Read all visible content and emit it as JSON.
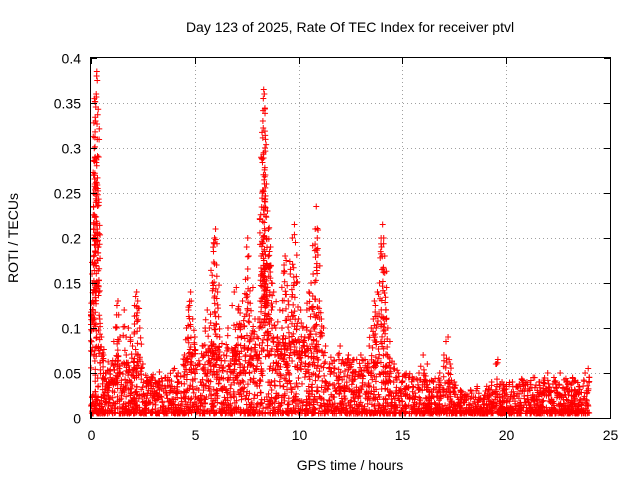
{
  "chart_data": {
    "type": "scatter",
    "title": "Day 123 of 2025, Rate Of TEC Index for receiver ptvl",
    "xlabel": "GPS time / hours",
    "ylabel": "ROTI / TECUs",
    "xlim": [
      0,
      25
    ],
    "ylim": [
      0,
      0.4
    ],
    "xticks": [
      0,
      5,
      10,
      15,
      20,
      25
    ],
    "xtick_labels": [
      "0",
      "5",
      "10",
      "15",
      "20",
      "25"
    ],
    "yticks": [
      0,
      0.05,
      0.1,
      0.15,
      0.2,
      0.25,
      0.3,
      0.35,
      0.4
    ],
    "ytick_labels": [
      "0",
      "0.05",
      "0.1",
      "0.15",
      "0.2",
      "0.25",
      "0.3",
      "0.35",
      "0.4"
    ],
    "grid": true,
    "marker": "+",
    "color": "#ff0000",
    "series": [
      {
        "name": "ROTI",
        "points": [
          [
            0.05,
            0.16
          ],
          [
            0.08,
            0.15
          ],
          [
            0.1,
            0.12
          ],
          [
            0.12,
            0.235
          ],
          [
            0.15,
            0.21
          ],
          [
            0.18,
            0.26
          ],
          [
            0.2,
            0.29
          ],
          [
            0.22,
            0.33
          ],
          [
            0.25,
            0.36
          ],
          [
            0.27,
            0.38
          ],
          [
            0.28,
            0.385
          ],
          [
            0.3,
            0.375
          ],
          [
            0.32,
            0.255
          ],
          [
            0.35,
            0.19
          ],
          [
            0.38,
            0.14
          ],
          [
            0.42,
            0.11
          ],
          [
            0.5,
            0.09
          ],
          [
            0.6,
            0.07
          ],
          [
            0.7,
            0.05
          ],
          [
            0.85,
            0.04
          ],
          [
            1.0,
            0.06
          ],
          [
            1.1,
            0.085
          ],
          [
            1.2,
            0.1
          ],
          [
            1.25,
            0.125
          ],
          [
            1.3,
            0.13
          ],
          [
            1.4,
            0.09
          ],
          [
            1.5,
            0.06
          ],
          [
            1.6,
            0.12
          ],
          [
            1.7,
            0.07
          ],
          [
            1.8,
            0.1
          ],
          [
            1.9,
            0.085
          ],
          [
            2.0,
            0.08
          ],
          [
            2.1,
            0.125
          ],
          [
            2.15,
            0.135
          ],
          [
            2.2,
            0.14
          ],
          [
            2.25,
            0.13
          ],
          [
            2.35,
            0.1
          ],
          [
            2.5,
            0.06
          ],
          [
            2.7,
            0.045
          ],
          [
            3.0,
            0.035
          ],
          [
            3.3,
            0.04
          ],
          [
            3.6,
            0.045
          ],
          [
            3.9,
            0.035
          ],
          [
            4.2,
            0.05
          ],
          [
            4.5,
            0.07
          ],
          [
            4.6,
            0.1
          ],
          [
            4.7,
            0.12
          ],
          [
            4.75,
            0.125
          ],
          [
            4.8,
            0.14
          ],
          [
            4.9,
            0.11
          ],
          [
            5.0,
            0.09
          ],
          [
            5.2,
            0.06
          ],
          [
            5.4,
            0.08
          ],
          [
            5.5,
            0.1
          ],
          [
            5.6,
            0.12
          ],
          [
            5.7,
            0.1
          ],
          [
            5.8,
            0.08
          ],
          [
            5.85,
            0.15
          ],
          [
            5.9,
            0.185
          ],
          [
            5.95,
            0.2
          ],
          [
            6.0,
            0.21
          ],
          [
            6.05,
            0.17
          ],
          [
            6.1,
            0.14
          ],
          [
            6.2,
            0.09
          ],
          [
            6.4,
            0.07
          ],
          [
            6.6,
            0.1
          ],
          [
            6.8,
            0.125
          ],
          [
            6.9,
            0.14
          ],
          [
            7.0,
            0.145
          ],
          [
            7.1,
            0.12
          ],
          [
            7.2,
            0.1
          ],
          [
            7.3,
            0.13
          ],
          [
            7.4,
            0.08
          ],
          [
            7.5,
            0.19
          ],
          [
            7.55,
            0.2
          ],
          [
            7.6,
            0.18
          ],
          [
            7.7,
            0.09
          ],
          [
            7.8,
            0.145
          ],
          [
            7.9,
            0.11
          ],
          [
            8.0,
            0.09
          ],
          [
            8.1,
            0.1
          ],
          [
            8.15,
            0.13
          ],
          [
            8.2,
            0.18
          ],
          [
            8.25,
            0.25
          ],
          [
            8.28,
            0.33
          ],
          [
            8.3,
            0.355
          ],
          [
            8.32,
            0.365
          ],
          [
            8.35,
            0.36
          ],
          [
            8.38,
            0.3
          ],
          [
            8.4,
            0.27
          ],
          [
            8.45,
            0.26
          ],
          [
            8.5,
            0.23
          ],
          [
            8.55,
            0.21
          ],
          [
            8.6,
            0.185
          ],
          [
            8.65,
            0.19
          ],
          [
            8.7,
            0.15
          ],
          [
            8.8,
            0.14
          ],
          [
            8.9,
            0.1
          ],
          [
            9.0,
            0.08
          ],
          [
            9.1,
            0.12
          ],
          [
            9.2,
            0.1
          ],
          [
            9.3,
            0.17
          ],
          [
            9.35,
            0.18
          ],
          [
            9.4,
            0.175
          ],
          [
            9.5,
            0.13
          ],
          [
            9.6,
            0.16
          ],
          [
            9.7,
            0.2
          ],
          [
            9.8,
            0.215
          ],
          [
            9.85,
            0.195
          ],
          [
            9.9,
            0.15
          ],
          [
            10.0,
            0.11
          ],
          [
            10.1,
            0.12
          ],
          [
            10.2,
            0.1
          ],
          [
            10.3,
            0.09
          ],
          [
            10.4,
            0.12
          ],
          [
            10.5,
            0.14
          ],
          [
            10.6,
            0.15
          ],
          [
            10.7,
            0.16
          ],
          [
            10.8,
            0.21
          ],
          [
            10.85,
            0.235
          ],
          [
            10.9,
            0.2
          ],
          [
            11.0,
            0.13
          ],
          [
            11.1,
            0.11
          ],
          [
            11.2,
            0.1
          ],
          [
            11.3,
            0.08
          ],
          [
            11.5,
            0.06
          ],
          [
            11.7,
            0.055
          ],
          [
            11.9,
            0.07
          ],
          [
            12.0,
            0.08
          ],
          [
            12.2,
            0.06
          ],
          [
            12.4,
            0.07
          ],
          [
            12.6,
            0.05
          ],
          [
            12.8,
            0.065
          ],
          [
            13.0,
            0.07
          ],
          [
            13.2,
            0.065
          ],
          [
            13.4,
            0.08
          ],
          [
            13.5,
            0.1
          ],
          [
            13.6,
            0.11
          ],
          [
            13.65,
            0.13
          ],
          [
            13.7,
            0.125
          ],
          [
            13.8,
            0.14
          ],
          [
            13.9,
            0.15
          ],
          [
            14.0,
            0.19
          ],
          [
            14.05,
            0.215
          ],
          [
            14.1,
            0.2
          ],
          [
            14.15,
            0.18
          ],
          [
            14.2,
            0.12
          ],
          [
            14.3,
            0.1
          ],
          [
            14.4,
            0.085
          ],
          [
            14.6,
            0.06
          ],
          [
            14.8,
            0.05
          ],
          [
            15.0,
            0.04
          ],
          [
            15.3,
            0.045
          ],
          [
            15.5,
            0.035
          ],
          [
            15.8,
            0.05
          ],
          [
            16.0,
            0.07
          ],
          [
            16.2,
            0.06
          ],
          [
            16.5,
            0.04
          ],
          [
            16.8,
            0.05
          ],
          [
            17.0,
            0.07
          ],
          [
            17.1,
            0.085
          ],
          [
            17.2,
            0.09
          ],
          [
            17.3,
            0.06
          ],
          [
            17.5,
            0.04
          ],
          [
            17.8,
            0.03
          ],
          [
            18.0,
            0.025
          ],
          [
            18.3,
            0.03
          ],
          [
            18.6,
            0.035
          ],
          [
            19.0,
            0.03
          ],
          [
            19.3,
            0.04
          ],
          [
            19.5,
            0.06
          ],
          [
            19.6,
            0.065
          ],
          [
            19.8,
            0.04
          ],
          [
            20.0,
            0.035
          ],
          [
            20.3,
            0.04
          ],
          [
            20.6,
            0.035
          ],
          [
            21.0,
            0.04
          ],
          [
            21.3,
            0.045
          ],
          [
            21.6,
            0.04
          ],
          [
            22.0,
            0.05
          ],
          [
            22.3,
            0.045
          ],
          [
            22.6,
            0.05
          ],
          [
            22.9,
            0.04
          ],
          [
            23.2,
            0.045
          ],
          [
            23.5,
            0.035
          ],
          [
            23.8,
            0.05
          ],
          [
            23.95,
            0.055
          ],
          [
            24.0,
            0.045
          ]
        ],
        "baseline_envelope": [
          [
            0.0,
            0.045
          ],
          [
            1.0,
            0.06
          ],
          [
            2.0,
            0.06
          ],
          [
            3.0,
            0.045
          ],
          [
            4.0,
            0.05
          ],
          [
            5.0,
            0.075
          ],
          [
            6.0,
            0.08
          ],
          [
            7.0,
            0.075
          ],
          [
            8.0,
            0.09
          ],
          [
            9.0,
            0.09
          ],
          [
            10.0,
            0.09
          ],
          [
            11.0,
            0.08
          ],
          [
            12.0,
            0.06
          ],
          [
            13.0,
            0.06
          ],
          [
            14.0,
            0.06
          ],
          [
            15.0,
            0.045
          ],
          [
            16.0,
            0.045
          ],
          [
            17.0,
            0.04
          ],
          [
            18.0,
            0.025
          ],
          [
            19.0,
            0.03
          ],
          [
            20.0,
            0.035
          ],
          [
            21.0,
            0.04
          ],
          [
            22.0,
            0.04
          ],
          [
            23.0,
            0.04
          ],
          [
            24.0,
            0.04
          ]
        ]
      }
    ]
  }
}
